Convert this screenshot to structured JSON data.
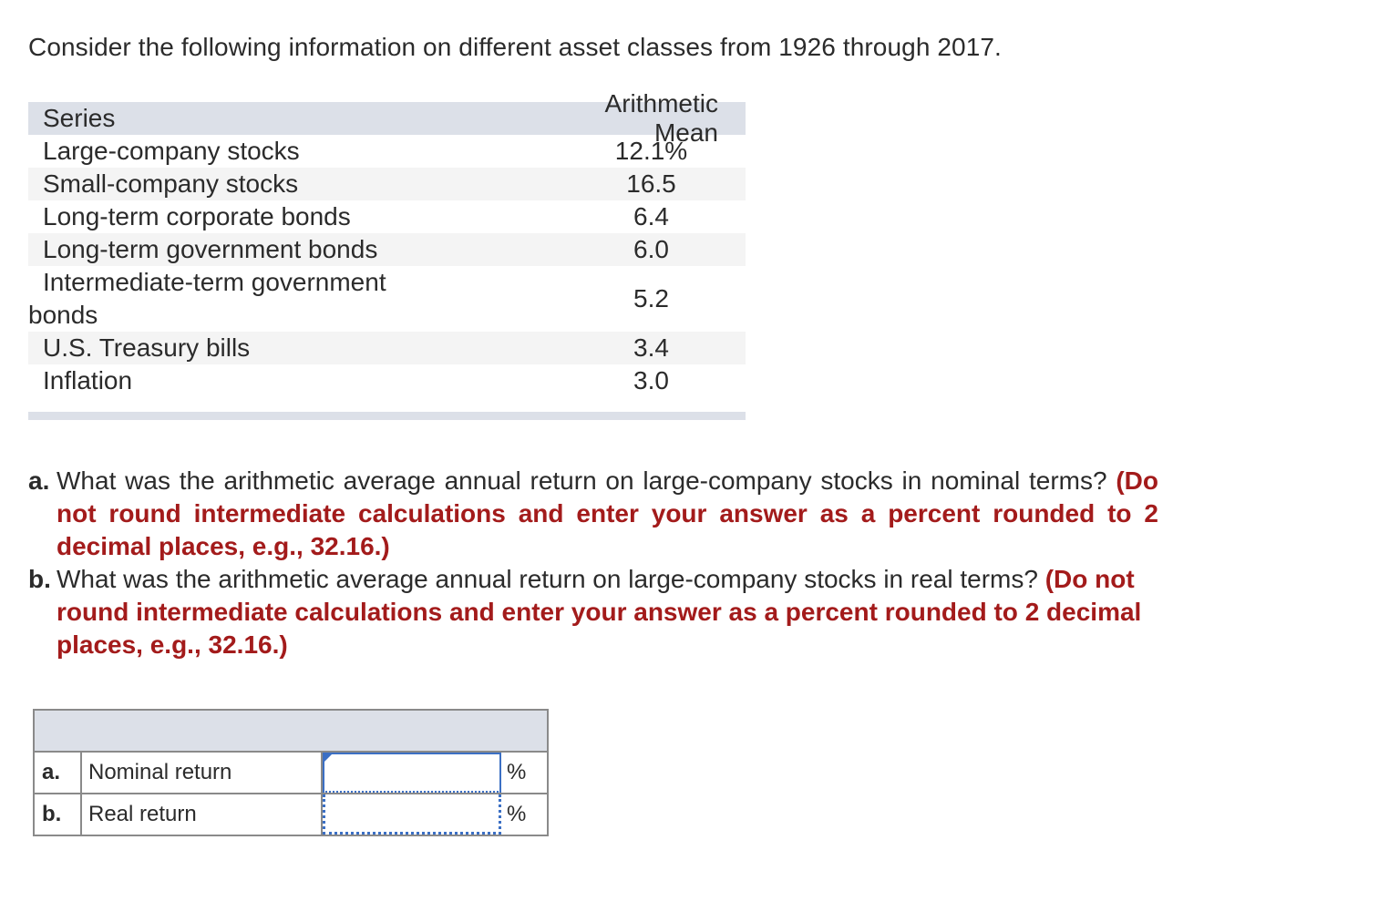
{
  "intro": "Consider the following information on different asset classes from 1926 through 2017.",
  "series_table": {
    "headers": [
      "Series",
      "Arithmetic Mean"
    ],
    "rows": [
      {
        "name": "Large-company stocks",
        "value": "12.1%"
      },
      {
        "name": "Small-company stocks",
        "value": "16.5"
      },
      {
        "name": "Long-term corporate bonds",
        "value": "6.4"
      },
      {
        "name": "Long-term government bonds",
        "value": "6.0"
      },
      {
        "name_line1": "Intermediate-term government",
        "name_line2": "bonds",
        "value": "5.2"
      },
      {
        "name": "U.S. Treasury bills",
        "value": "3.4"
      },
      {
        "name": "Inflation",
        "value": "3.0"
      }
    ]
  },
  "questions": {
    "a": {
      "letter": "a.",
      "text": "What was the arithmetic average annual return on large-company stocks in nominal terms?",
      "instruction": "(Do not round intermediate calculations and enter your answer as a percent rounded to 2 decimal places, e.g., 32.16.)"
    },
    "b": {
      "letter": "b.",
      "text": "What was the arithmetic average annual return on large-company stocks in real terms?",
      "instruction": "(Do not round intermediate calculations and enter your answer as a percent rounded to 2 decimal places, e.g., 32.16.)"
    }
  },
  "answer_table": {
    "rows": [
      {
        "letter": "a.",
        "label": "Nominal return",
        "value": "",
        "unit": "%"
      },
      {
        "letter": "b.",
        "label": "Real return",
        "value": "",
        "unit": "%"
      }
    ]
  },
  "colors": {
    "header_bg": "#dce0e8",
    "instruction_red": "#a31b1b",
    "input_blue": "#3b6fc4"
  }
}
